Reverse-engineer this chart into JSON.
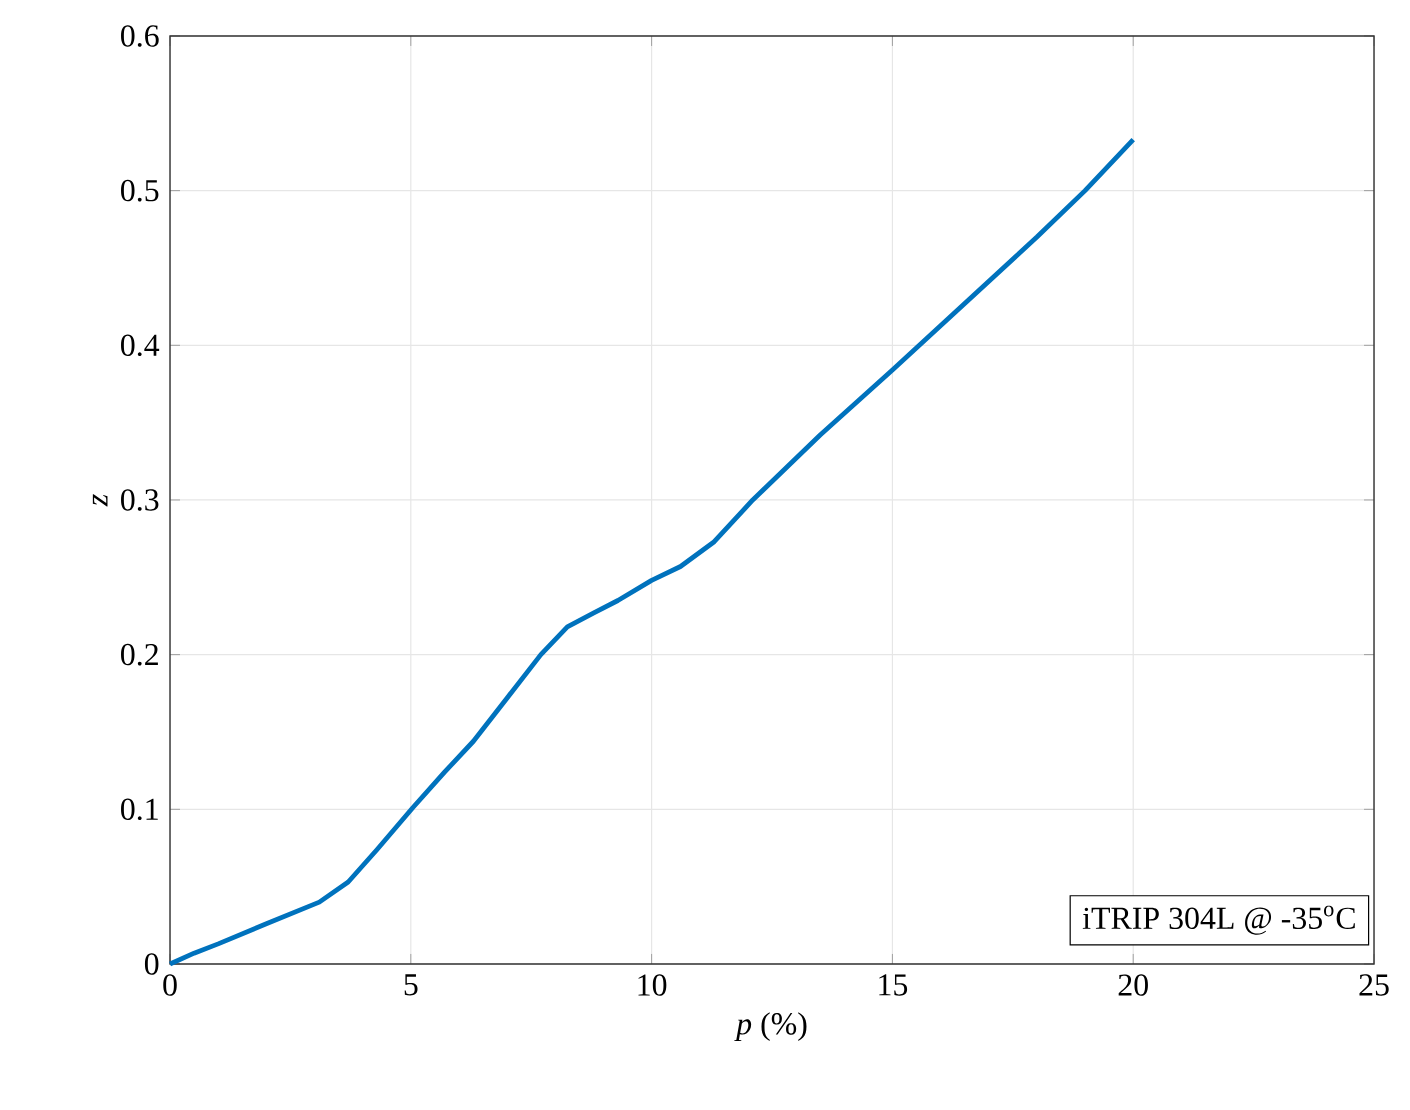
{
  "chart_data": {
    "type": "line",
    "xlabel": "*p* (%)",
    "ylabel": "z",
    "x": [
      0,
      0.5,
      1,
      2,
      3.1,
      3.7,
      4.3,
      5.04,
      5.7,
      6.3,
      7,
      7.7,
      8.25,
      8.8,
      9.3,
      10,
      10.6,
      11.3,
      12.1,
      13.5,
      15,
      16.5,
      18,
      19,
      20
    ],
    "series": [
      {
        "color": "#0072bd",
        "values": [
          0,
          0.007,
          0.013,
          0.026,
          0.04,
          0.053,
          0.074,
          0.101,
          0.124,
          0.144,
          0.172,
          0.2,
          0.218,
          0.227,
          0.235,
          0.248,
          0.257,
          0.273,
          0.3,
          0.342,
          0.384,
          0.427,
          0.47,
          0.5,
          0.533
        ]
      }
    ],
    "xlim": [
      0,
      25
    ],
    "ylim": [
      0,
      0.6
    ],
    "xticks": [
      0,
      5,
      10,
      15,
      20,
      25
    ],
    "yticks": [
      0,
      0.1,
      0.2,
      0.3,
      0.4,
      0.5,
      0.6
    ],
    "grid": true,
    "line_style": "solid",
    "marker": "none",
    "annotations": [
      "iTRIP 304L @ -35$^{o}$C"
    ]
  }
}
